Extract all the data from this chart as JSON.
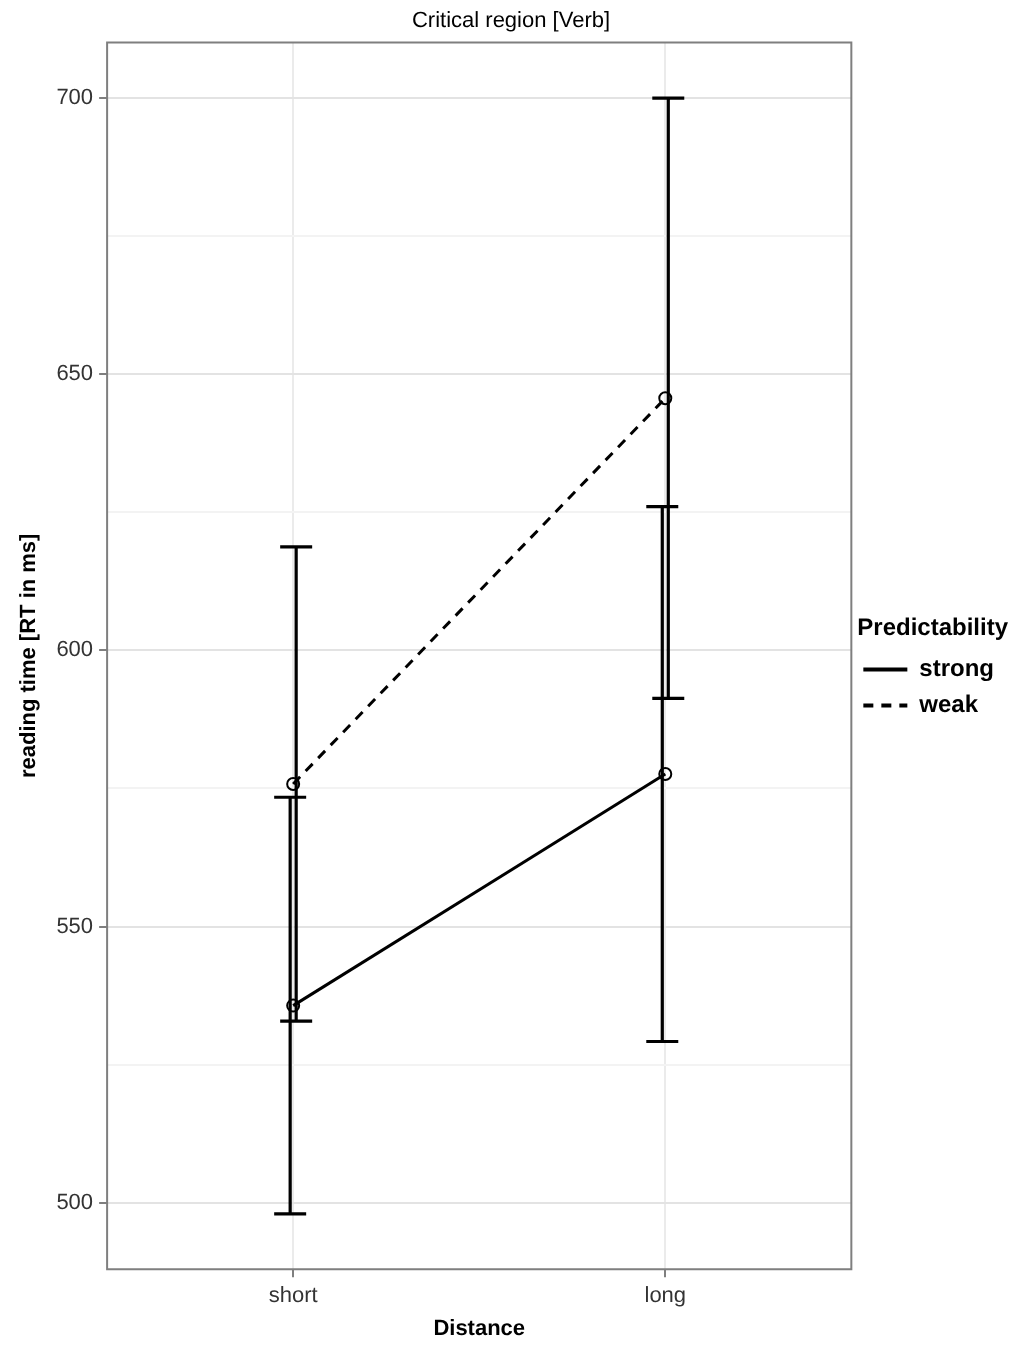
{
  "chart_data": {
    "type": "line",
    "title": "Critical region [Verb]",
    "xlabel": "Distance",
    "ylabel": "reading time [RT in ms]",
    "legend_title": "Predictability",
    "categories": [
      "short",
      "long"
    ],
    "series": [
      {
        "name": "strong",
        "color": "#000000",
        "line_style": "solid",
        "values": [
          535.7,
          577.6
        ],
        "errors": [
          37.7,
          48.4
        ]
      },
      {
        "name": "weak",
        "color": "#000000",
        "line_style": "dashed",
        "values": [
          575.8,
          645.6
        ],
        "errors": [
          42.9,
          54.3
        ]
      }
    ],
    "marker": "circle",
    "ylim": [
      488,
      710
    ],
    "yticks": [
      {
        "value": 500,
        "label": "500"
      },
      {
        "value": 525,
        "label": null
      },
      {
        "value": 550,
        "label": "550"
      },
      {
        "value": 575,
        "label": null
      },
      {
        "value": 600,
        "label": "600"
      },
      {
        "value": 625,
        "label": null
      },
      {
        "value": 650,
        "label": "650"
      },
      {
        "value": 675,
        "label": null
      },
      {
        "value": 700,
        "label": "700"
      }
    ],
    "grid": true,
    "legend": "right"
  }
}
